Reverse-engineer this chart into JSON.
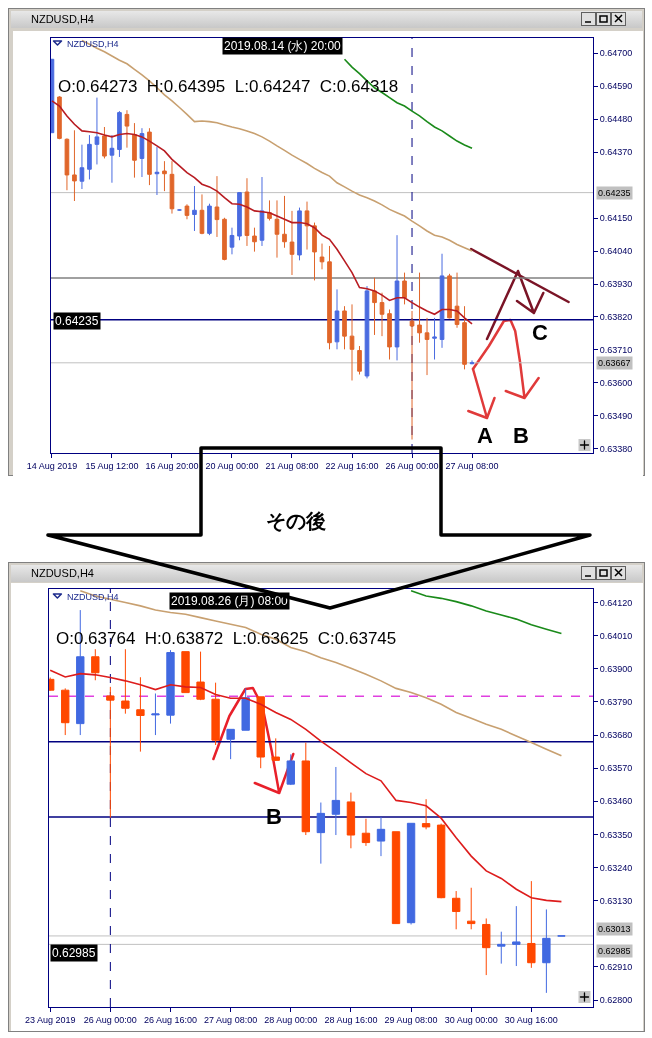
{
  "chart_data": [
    {
      "type": "candlestick",
      "title": "NZDUSD,H4",
      "categories": [
        "14 Aug 2019",
        null,
        null,
        null,
        null,
        null,
        null,
        null,
        "15 Aug 12:00",
        null,
        null,
        null,
        null,
        null,
        null,
        null,
        "16 Aug 20:00",
        null,
        null,
        null,
        null,
        null,
        null,
        null,
        "20 Aug 00:00",
        null,
        null,
        null,
        null,
        null,
        null,
        null,
        "21 Aug 08:00",
        null,
        null,
        null,
        null,
        null,
        null,
        null,
        "22 Aug 16:00",
        null,
        null,
        null,
        null,
        null,
        null,
        null,
        "26 Aug 00:00",
        null,
        null,
        null,
        null,
        null,
        null,
        null,
        "27 Aug 08:00"
      ],
      "ohlc": [
        [
          0.64435,
          0.6468,
          0.64435,
          0.6468
        ],
        [
          0.64554,
          0.64557,
          0.64413,
          0.64416
        ],
        [
          0.64413,
          0.64416,
          0.64243,
          0.64294
        ],
        [
          0.64294,
          0.64443,
          0.64207,
          0.64274
        ],
        [
          0.64273,
          0.64395,
          0.64247,
          0.64318
        ],
        [
          0.64313,
          0.64427,
          0.64279,
          0.64396
        ],
        [
          0.64396,
          0.64552,
          0.64329,
          0.64421
        ],
        [
          0.64424,
          0.64454,
          0.64349,
          0.64357
        ],
        [
          0.6436,
          0.64427,
          0.64268,
          0.64383
        ],
        [
          0.64379,
          0.64507,
          0.64354,
          0.64502
        ],
        [
          0.64496,
          0.6451,
          0.64385,
          0.64457
        ],
        [
          0.64429,
          0.64467,
          0.64285,
          0.64343
        ],
        [
          0.64349,
          0.6445,
          0.64287,
          0.64432
        ],
        [
          0.64437,
          0.6445,
          0.6426,
          0.64296
        ],
        [
          0.64298,
          0.64387,
          0.64227,
          0.64303
        ],
        [
          0.64307,
          0.6434,
          0.6424,
          0.64298
        ],
        [
          0.64296,
          0.6434,
          0.64165,
          0.64181
        ],
        [
          0.64177,
          0.64179,
          0.64175,
          0.64177
        ],
        [
          0.6419,
          0.64196,
          0.64146,
          0.64159
        ],
        [
          0.64162,
          0.64257,
          0.64107,
          0.64176
        ],
        [
          0.64176,
          0.64229,
          0.64096,
          0.64099
        ],
        [
          0.64099,
          0.64198,
          0.64093,
          0.6419
        ],
        [
          0.64187,
          0.6429,
          0.64087,
          0.64145
        ],
        [
          0.64146,
          0.64151,
          0.64009,
          0.64012
        ],
        [
          0.64053,
          0.64118,
          0.64029,
          0.64092
        ],
        [
          0.6409,
          0.64237,
          0.64076,
          0.64235
        ],
        [
          0.64237,
          0.64283,
          0.64057,
          0.64092
        ],
        [
          0.6409,
          0.64118,
          0.64038,
          0.64071
        ],
        [
          0.64076,
          0.64287,
          0.64057,
          0.64174
        ],
        [
          0.64168,
          0.64209,
          0.64142,
          0.64149
        ],
        [
          0.64146,
          0.64209,
          0.64018,
          0.64096
        ],
        [
          0.64096,
          0.64224,
          0.64051,
          0.64071
        ],
        [
          0.6407,
          0.64174,
          0.6396,
          0.64029
        ],
        [
          0.64027,
          0.64185,
          0.64009,
          0.64174
        ],
        [
          0.64174,
          0.64205,
          0.64045,
          0.64124
        ],
        [
          0.64124,
          0.64135,
          0.63942,
          0.64037
        ],
        [
          0.6402,
          0.64065,
          0.63979,
          0.64004
        ],
        [
          0.64004,
          0.64057,
          0.63712,
          0.63734
        ],
        [
          0.63737,
          0.63912,
          0.63712,
          0.6384
        ],
        [
          0.6384,
          0.63856,
          0.63712,
          0.63756
        ],
        [
          0.63756,
          0.63862,
          0.63608,
          0.63712
        ],
        [
          0.63708,
          0.63723,
          0.63628,
          0.63639
        ],
        [
          0.63623,
          0.63923,
          0.63615,
          0.63907
        ],
        [
          0.63907,
          0.63951,
          0.6376,
          0.63868
        ],
        [
          0.63868,
          0.63901,
          0.63756,
          0.63829
        ],
        [
          0.63831,
          0.63845,
          0.63678,
          0.6372
        ],
        [
          0.6372,
          0.64093,
          0.63675,
          0.6394
        ],
        [
          0.6394,
          0.63968,
          0.63862,
          0.63884
        ],
        [
          0.63806,
          0.6384,
          0.63411,
          0.6379
        ],
        [
          0.63793,
          0.63968,
          0.63734,
          0.63767
        ],
        [
          0.63767,
          0.63817,
          0.63626,
          0.63745
        ],
        [
          0.63749,
          0.63817,
          0.63678,
          0.63753
        ],
        [
          0.63745,
          0.64031,
          0.63717,
          0.63957
        ],
        [
          0.63957,
          0.63964,
          0.63815,
          0.63817
        ],
        [
          0.63856,
          0.63968,
          0.63784,
          0.63795
        ],
        [
          0.63801,
          0.63856,
          0.63645,
          0.63662
        ],
        [
          0.63664,
          0.63675,
          0.63662,
          0.63667
        ]
      ],
      "colors": [
        "#4a6be0",
        "#e0662a",
        "#e0662a",
        "#e0662a",
        "#4a6be0",
        "#4a6be0",
        "#4a6be0",
        "#e0662a",
        "#4a6be0",
        "#4a6be0",
        "#e0662a",
        "#e0662a",
        "#4a6be0",
        "#e0662a",
        "#4a6be0",
        "#e0662a",
        "#e0662a",
        "#4a6be0",
        "#e0662a",
        "#4a6be0",
        "#e0662a",
        "#4a6be0",
        "#e0662a",
        "#e0662a",
        "#4a6be0",
        "#4a6be0",
        "#e0662a",
        "#e0662a",
        "#4a6be0",
        "#e0662a",
        "#e0662a",
        "#e0662a",
        "#e0662a",
        "#4a6be0",
        "#e0662a",
        "#e0662a",
        "#e0662a",
        "#e0662a",
        "#4a6be0",
        "#e0662a",
        "#e0662a",
        "#e0662a",
        "#4a6be0",
        "#e0662a",
        "#e0662a",
        "#e0662a",
        "#4a6be0",
        "#e0662a",
        "#e0662a",
        "#e0662a",
        "#e0662a",
        "#4a6be0",
        "#4a6be0",
        "#e0662a",
        "#e0662a",
        "#e0662a",
        "#4a6be0"
      ],
      "series": [
        {
          "type": "line",
          "color": "#b81c22",
          "values": [
            0.64541,
            0.64524,
            0.64491,
            0.64463,
            0.64441,
            0.64438,
            0.64435,
            0.64427,
            0.64421,
            0.64429,
            0.64432,
            0.64429,
            0.64421,
            0.64407,
            0.64391,
            0.64374,
            0.64346,
            0.64324,
            0.64302,
            0.64285,
            0.64263,
            0.64254,
            0.6424,
            0.64218,
            0.64198,
            0.64196,
            0.64187,
            0.64174,
            0.64171,
            0.64168,
            0.64157,
            0.64146,
            0.64135,
            0.64135,
            0.64131,
            0.64118,
            0.64093,
            0.64079,
            0.64046,
            0.64007,
            0.63968,
            0.63918,
            0.63914,
            0.63907,
            0.63893,
            0.63875,
            0.63884,
            0.63884,
            0.63868,
            0.63853,
            0.6384,
            0.63829,
            0.63845,
            0.63845,
            0.6384,
            0.63817,
            0.63797
          ]
        },
        {
          "type": "line",
          "color": "#c8a070",
          "values": [
            null,
            null,
            null,
            null,
            0.64743,
            0.6473,
            0.64717,
            0.64705,
            0.64691,
            0.64677,
            0.64665,
            0.64646,
            0.64628,
            0.64608,
            0.64585,
            0.64561,
            0.64541,
            0.64519,
            0.64496,
            0.64472,
            0.64474,
            0.64472,
            0.64468,
            0.64461,
            0.64454,
            0.64448,
            0.64441,
            0.64432,
            0.64421,
            0.64407,
            0.64391,
            0.64376,
            0.6436,
            0.64346,
            0.64332,
            0.64316,
            0.64302,
            0.6429,
            0.64268,
            0.64254,
            0.6424,
            0.64227,
            0.64218,
            0.64207,
            0.64194,
            0.64179,
            0.64168,
            0.64157,
            0.6414,
            0.64124,
            0.64107,
            0.64093,
            0.64087,
            0.64076,
            0.64062,
            0.64051,
            0.6404
          ]
        },
        {
          "type": "line",
          "color": "#1a8a1a",
          "values": [
            null,
            null,
            null,
            null,
            null,
            null,
            null,
            null,
            null,
            null,
            null,
            null,
            null,
            null,
            null,
            null,
            null,
            null,
            null,
            null,
            null,
            null,
            null,
            null,
            null,
            null,
            null,
            null,
            null,
            null,
            null,
            null,
            null,
            null,
            null,
            null,
            null,
            null,
            null,
            0.6468,
            0.64654,
            0.64632,
            0.64608,
            0.64585,
            0.64569,
            0.64552,
            0.64535,
            0.64524,
            0.64507,
            0.64491,
            0.64472,
            0.64454,
            0.64441,
            0.64424,
            0.64407,
            0.64394,
            0.64383
          ]
        }
      ],
      "ylim": [
        0.63366,
        0.64751
      ],
      "yticks": [
        {
          "value": 0.647,
          "label": "0.64700"
        },
        {
          "value": 0.6459,
          "label": "0.64590"
        },
        {
          "value": 0.6448,
          "label": "0.64480"
        },
        {
          "value": 0.6437,
          "label": "0.64370"
        },
        {
          "value": 0.6415,
          "label": "0.64150"
        },
        {
          "value": 0.6404,
          "label": "0.64040"
        },
        {
          "value": 0.6393,
          "label": "0.63930"
        },
        {
          "value": 0.6382,
          "label": "0.63820"
        },
        {
          "value": 0.6371,
          "label": "0.63710"
        },
        {
          "value": 0.636,
          "label": "0.63600"
        },
        {
          "value": 0.6349,
          "label": "0.63490"
        },
        {
          "value": 0.6338,
          "label": "0.63380"
        }
      ],
      "ref_lines": [
        {
          "axis": "y",
          "value": 0.64235,
          "label": "0.64235",
          "color": "#c0c0c0"
        },
        {
          "axis": "y",
          "value": 0.63667,
          "label": "0.63667",
          "color": "#c0c0c0"
        },
        {
          "axis": "y",
          "value": 0.6395,
          "color": "#808080"
        },
        {
          "axis": "y",
          "value": 0.63811,
          "color": "#000080"
        },
        {
          "axis": "x",
          "value": "26 Aug 00:00",
          "color": "#000080",
          "line_style": "dashed"
        }
      ],
      "annotations": [
        "NZDUSD,H4",
        "2019.08.14 (水) 20:00",
        "O:0.64273  H:0.64395  L:0.64247  C:0.64318",
        "0.64235",
        "A",
        "B",
        "C"
      ]
    },
    {
      "type": "candlestick",
      "title": "NZDUSD,H4",
      "categories": [
        "23 Aug 2019",
        null,
        null,
        null,
        "26 Aug 00:00",
        null,
        null,
        null,
        "26 Aug 16:00",
        null,
        null,
        null,
        "27 Aug 08:00",
        null,
        null,
        null,
        "28 Aug 00:00",
        null,
        null,
        null,
        "28 Aug 16:00",
        null,
        null,
        null,
        "29 Aug 08:00",
        null,
        null,
        null,
        "30 Aug 00:00",
        null,
        null,
        null,
        "30 Aug 16:00",
        null,
        null
      ],
      "ohlc": [
        [
          0.63865,
          0.63871,
          0.63827,
          0.63829
        ],
        [
          0.63829,
          0.63835,
          0.6368,
          0.63721
        ],
        [
          0.63718,
          0.64095,
          0.6368,
          0.6394
        ],
        [
          0.6394,
          0.63965,
          0.63862,
          0.63887
        ],
        [
          0.6381,
          0.6384,
          0.63406,
          0.63796
        ],
        [
          0.63793,
          0.63965,
          0.63751,
          0.63769
        ],
        [
          0.63764,
          0.63872,
          0.63625,
          0.63745
        ],
        [
          0.63747,
          0.63818,
          0.6368,
          0.6375
        ],
        [
          0.63746,
          0.63962,
          0.63718,
          0.63954
        ],
        [
          0.63957,
          0.63957,
          0.63821,
          0.63821
        ],
        [
          0.63856,
          0.63957,
          0.63796,
          0.63799
        ],
        [
          0.63799,
          0.63854,
          0.63647,
          0.63663
        ],
        [
          0.63666,
          0.63699,
          0.636,
          0.63699
        ],
        [
          0.63696,
          0.63835,
          0.63696,
          0.63804
        ],
        [
          0.63807,
          0.63807,
          0.6357,
          0.63607
        ],
        [
          0.63607,
          0.63669,
          0.63594,
          0.63596
        ],
        [
          0.63517,
          0.63616,
          0.63514,
          0.63594
        ],
        [
          0.63594,
          0.63655,
          0.63348,
          0.63359
        ],
        [
          0.63356,
          0.63456,
          0.63253,
          0.6342
        ],
        [
          0.63417,
          0.63574,
          0.63348,
          0.63463
        ],
        [
          0.63458,
          0.63489,
          0.63304,
          0.63348
        ],
        [
          0.63354,
          0.63402,
          0.63312,
          0.63323
        ],
        [
          0.63328,
          0.63408,
          0.63278,
          0.63367
        ],
        [
          0.63359,
          0.63359,
          0.63054,
          0.63054
        ],
        [
          0.63057,
          0.63387,
          0.63051,
          0.63387
        ],
        [
          0.63386,
          0.63467,
          0.63367,
          0.63375
        ],
        [
          0.63381,
          0.63386,
          0.63138,
          0.6314
        ],
        [
          0.63138,
          0.63162,
          0.63035,
          0.63094
        ],
        [
          0.63062,
          0.63173,
          0.63035,
          0.63054
        ],
        [
          0.63051,
          0.63071,
          0.62883,
          0.62974
        ],
        [
          0.62979,
          0.63027,
          0.62921,
          0.62985
        ],
        [
          0.62985,
          0.63112,
          0.62913,
          0.62993
        ],
        [
          0.62988,
          0.63195,
          0.62907,
          0.62924
        ],
        [
          0.62924,
          0.63101,
          0.62824,
          0.63005
        ],
        [
          0.63013,
          0.63013,
          0.63013,
          0.63013
        ]
      ],
      "colors": [
        "#ff4800",
        "#ff4800",
        "#4169e1",
        "#ff4800",
        "#ff4800",
        "#ff4800",
        "#ff4800",
        "#4169e1",
        "#4169e1",
        "#ff4800",
        "#ff4800",
        "#ff4800",
        "#4169e1",
        "#4169e1",
        "#ff4800",
        "#ff4800",
        "#4169e1",
        "#ff4800",
        "#4169e1",
        "#4169e1",
        "#ff4800",
        "#ff4800",
        "#4169e1",
        "#ff4800",
        "#4169e1",
        "#ff4800",
        "#ff4800",
        "#ff4800",
        "#ff4800",
        "#ff4800",
        "#4169e1",
        "#4169e1",
        "#ff4800",
        "#4169e1",
        "#4169e1"
      ],
      "series": [
        {
          "type": "line",
          "color": "#dd1c1c",
          "values": [
            0.63895,
            0.63873,
            0.63884,
            0.6388,
            0.63871,
            0.6386,
            0.63847,
            0.63831,
            0.63847,
            0.6384,
            0.63838,
            0.63815,
            0.63802,
            0.63802,
            0.63782,
            0.63755,
            0.63732,
            0.63699,
            0.6366,
            0.63625,
            0.63588,
            0.63552,
            0.63528,
            0.63463,
            0.63456,
            0.63445,
            0.63404,
            0.63339,
            0.63278,
            0.63229,
            0.63204,
            0.63168,
            0.6314,
            0.63131,
            0.63127
          ]
        },
        {
          "type": "line",
          "color": "#c8a070",
          "values": [
            null,
            null,
            0.64159,
            0.64142,
            0.64131,
            0.6412,
            0.64109,
            0.64095,
            0.64087,
            0.64081,
            0.6407,
            0.64059,
            0.64048,
            0.64037,
            0.64015,
            0.63998,
            0.63971,
            0.63957,
            0.63937,
            0.63921,
            0.63902,
            0.63882,
            0.6386,
            0.63835,
            0.63821,
            0.63804,
            0.63782,
            0.63755,
            0.63736,
            0.63716,
            0.63699,
            0.63677,
            0.63655,
            0.63633,
            0.63611
          ]
        },
        {
          "type": "line",
          "color": "#1a8a1a",
          "values": [
            null,
            null,
            null,
            null,
            null,
            null,
            null,
            null,
            null,
            null,
            null,
            null,
            null,
            null,
            null,
            null,
            null,
            null,
            null,
            null,
            null,
            null,
            null,
            null,
            0.64159,
            0.64142,
            0.64134,
            0.64123,
            0.64109,
            0.64092,
            0.64079,
            0.64065,
            0.64046,
            0.64031,
            0.64017
          ]
        }
      ],
      "ylim": [
        0.62777,
        0.64165
      ],
      "yticks": [
        {
          "value": 0.6412,
          "label": "0.64120"
        },
        {
          "value": 0.6401,
          "label": "0.64010"
        },
        {
          "value": 0.639,
          "label": "0.63900"
        },
        {
          "value": 0.6379,
          "label": "0.63790"
        },
        {
          "value": 0.6368,
          "label": "0.63680"
        },
        {
          "value": 0.6357,
          "label": "0.63570"
        },
        {
          "value": 0.6346,
          "label": "0.63460"
        },
        {
          "value": 0.6335,
          "label": "0.63350"
        },
        {
          "value": 0.6324,
          "label": "0.63240"
        },
        {
          "value": 0.6313,
          "label": "0.63130"
        },
        {
          "value": 0.6291,
          "label": "0.62910"
        },
        {
          "value": 0.628,
          "label": "0.62800"
        }
      ],
      "ref_lines": [
        {
          "axis": "y",
          "value": 0.63809,
          "color": "#e040e0",
          "line_style": "dashed"
        },
        {
          "axis": "y",
          "value": 0.63658,
          "color": "#000080"
        },
        {
          "axis": "y",
          "value": 0.63408,
          "color": "#000080"
        },
        {
          "axis": "y",
          "value": 0.63013,
          "label": "0.63013",
          "color": "#c0c0c0"
        },
        {
          "axis": "y",
          "value": 0.62985,
          "label": "0.62985",
          "color": "#c0c0c0"
        },
        {
          "axis": "x",
          "value": "26 Aug 00:00",
          "color": "#000080",
          "line_style": "dashed"
        }
      ],
      "annotations": [
        "NZDUSD,H4",
        "2019.08.26 (月) 08:00",
        "O:0.63764  H:0.63872  L:0.63625  C:0.63745",
        "0.62985",
        {
          "text": "B",
          "y": 0.63411
        },
        "その後"
      ]
    }
  ]
}
